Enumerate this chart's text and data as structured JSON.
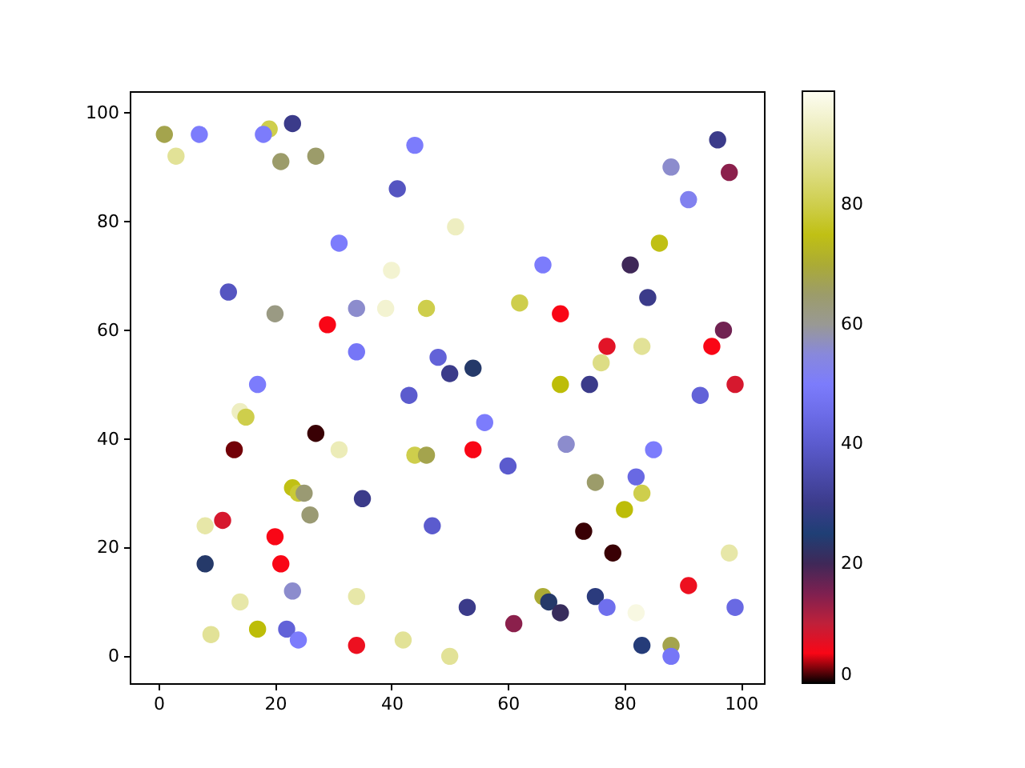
{
  "chart_data": {
    "type": "scatter",
    "marker": "circle",
    "grid": false,
    "x": [
      1,
      3,
      7,
      19,
      18,
      23,
      21,
      27,
      44,
      41,
      31,
      40,
      12,
      20,
      29,
      34,
      39,
      46,
      34,
      17,
      43,
      96,
      88,
      98,
      91,
      51,
      86,
      66,
      81,
      84,
      62,
      69,
      97,
      77,
      83,
      95,
      76,
      48,
      50,
      54,
      69,
      74,
      99,
      93,
      14,
      15,
      27,
      13,
      31,
      44,
      46,
      23,
      24,
      25,
      35,
      26,
      11,
      8,
      47,
      20,
      8,
      21,
      23,
      14,
      34,
      9,
      17,
      22,
      24,
      34,
      42,
      56,
      54,
      70,
      85,
      60,
      75,
      82,
      83,
      80,
      73,
      78,
      98,
      91,
      66,
      67,
      75,
      69,
      53,
      77,
      82,
      99,
      61,
      83,
      88,
      88,
      50
    ],
    "values": [
      96,
      92,
      96,
      97,
      96,
      98,
      91,
      92,
      94,
      86,
      76,
      71,
      67,
      63,
      61,
      64,
      64,
      64,
      56,
      50,
      48,
      95,
      90,
      89,
      84,
      79,
      76,
      72,
      72,
      66,
      65,
      63,
      60,
      57,
      57,
      57,
      54,
      55,
      52,
      53,
      50,
      50,
      50,
      48,
      45,
      44,
      41,
      38,
      38,
      37,
      37,
      31,
      30,
      30,
      29,
      26,
      25,
      24,
      24,
      22,
      17,
      17,
      12,
      10,
      11,
      4,
      5,
      5,
      3,
      2,
      3,
      43,
      38,
      39,
      38,
      35,
      32,
      33,
      30,
      27,
      23,
      19,
      19,
      13,
      11,
      10,
      11,
      8,
      9,
      9,
      8,
      9,
      6,
      2,
      2,
      0,
      0
    ],
    "cvalues": [
      68,
      88,
      50,
      80,
      50,
      30,
      65,
      65,
      50,
      38,
      50,
      95,
      38,
      62,
      5,
      56,
      95,
      80,
      48,
      50,
      40,
      30,
      56,
      14,
      52,
      93,
      75,
      50,
      20,
      30,
      80,
      5,
      16,
      7,
      88,
      5,
      86,
      42,
      30,
      24,
      74,
      30,
      8,
      42,
      93,
      80,
      1,
      2,
      92,
      80,
      68,
      75,
      78,
      64,
      30,
      64,
      8,
      90,
      40,
      5,
      24,
      5,
      56,
      90,
      90,
      88,
      74,
      42,
      50,
      6,
      88,
      50,
      5,
      56,
      50,
      40,
      65,
      44,
      80,
      74,
      1,
      1,
      90,
      6,
      70,
      24,
      27,
      22,
      30,
      46,
      97,
      44,
      14,
      26,
      68,
      48,
      88
    ],
    "xlim": [
      -4.95,
      103.95
    ],
    "ylim": [
      -4.95,
      103.95
    ],
    "xticks": [
      0,
      20,
      40,
      60,
      80,
      100
    ],
    "yticks": [
      0,
      20,
      40,
      60,
      80,
      100
    ],
    "clim": [
      0,
      99
    ],
    "cticks": [
      0,
      20,
      40,
      60,
      80
    ]
  }
}
